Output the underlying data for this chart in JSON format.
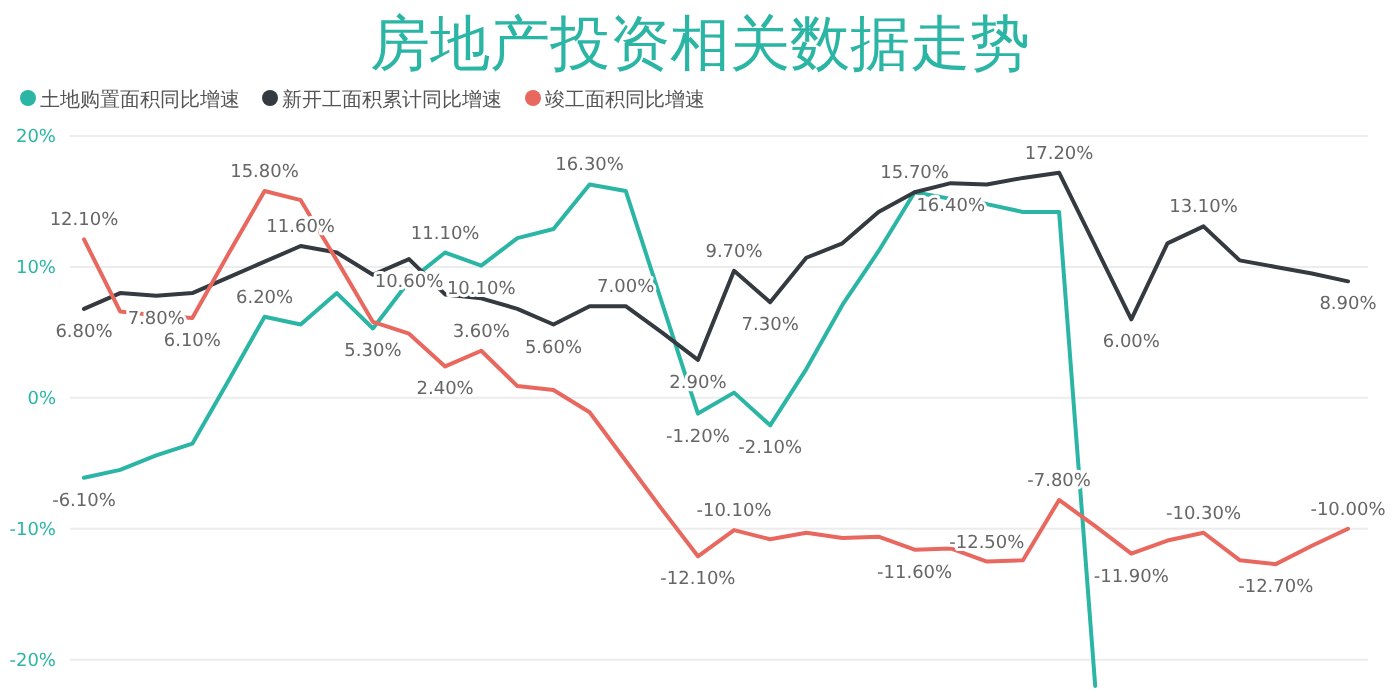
{
  "chart_data": {
    "type": "line",
    "title": "房地产投资相关数据走势",
    "categories": [
      null,
      null,
      null,
      null,
      null,
      null,
      null,
      null,
      null,
      null,
      null,
      null,
      null,
      null,
      null,
      null,
      null,
      null,
      null,
      null,
      null,
      null,
      null,
      null,
      null,
      null,
      null,
      null,
      null,
      null,
      null,
      null,
      null,
      null,
      null,
      null
    ],
    "series": [
      {
        "name": "土地购置面积同比增速",
        "color": "#2bb5a5",
        "values": [
          -6.1,
          -5.5,
          -4.4,
          -3.5,
          1.3,
          6.2,
          5.6,
          8.0,
          5.3,
          8.9,
          11.1,
          10.1,
          12.2,
          12.9,
          16.3,
          15.8,
          7.3,
          -1.2,
          0.4,
          -2.1,
          2.2,
          7.1,
          11.2,
          15.7,
          15.2,
          14.8,
          14.2,
          14.2,
          -22,
          null,
          null,
          null,
          null,
          null,
          null,
          null
        ],
        "value_labels": [
          "-6.10%",
          null,
          null,
          null,
          null,
          "6.20%",
          null,
          null,
          "5.30%",
          null,
          "11.10%",
          "10.10%",
          null,
          null,
          "16.30%",
          null,
          null,
          "-1.20%",
          null,
          "-2.10%",
          null,
          null,
          null,
          "15.70%",
          null,
          null,
          null,
          null,
          null,
          null,
          null,
          null,
          null,
          null,
          null,
          null
        ]
      },
      {
        "name": "新开工面积累计同比增速",
        "color": "#343a3f",
        "values": [
          6.8,
          8.0,
          7.8,
          8.0,
          9.2,
          10.4,
          11.6,
          11.1,
          9.4,
          10.6,
          7.9,
          7.6,
          6.8,
          5.6,
          7.0,
          7.0,
          5.0,
          2.9,
          9.7,
          7.3,
          10.7,
          11.8,
          14.2,
          15.7,
          16.4,
          16.3,
          16.8,
          17.2,
          11.6,
          6.0,
          11.8,
          13.1,
          10.5,
          10.0,
          9.5,
          8.9
        ],
        "value_labels": [
          "6.80%",
          null,
          "7.80%",
          null,
          null,
          null,
          "11.60%",
          null,
          null,
          "10.60%",
          null,
          null,
          null,
          "5.60%",
          null,
          "7.00%",
          null,
          "2.90%",
          "9.70%",
          "7.30%",
          null,
          null,
          null,
          null,
          "16.40%",
          null,
          null,
          "17.20%",
          null,
          "6.00%",
          null,
          "13.10%",
          null,
          null,
          null,
          "8.90%"
        ]
      },
      {
        "name": "竣工面积同比增速",
        "color": "#e8685f",
        "values": [
          12.1,
          6.6,
          6.3,
          6.1,
          11.0,
          15.8,
          15.1,
          10.5,
          5.8,
          4.9,
          2.4,
          3.6,
          0.9,
          0.6,
          -1.1,
          -4.8,
          -8.5,
          -12.1,
          -10.1,
          -10.8,
          -10.3,
          -10.7,
          -10.6,
          -11.6,
          -11.5,
          -12.5,
          -12.4,
          -7.8,
          -9.8,
          -11.9,
          -10.9,
          -10.3,
          -12.4,
          -12.7,
          -11.3,
          -10.0
        ],
        "value_labels": [
          "12.10%",
          null,
          null,
          "6.10%",
          null,
          "15.80%",
          null,
          null,
          null,
          null,
          "2.40%",
          "3.60%",
          null,
          null,
          null,
          null,
          null,
          "-12.10%",
          "-10.10%",
          null,
          null,
          null,
          null,
          "-11.60%",
          null,
          "-12.50%",
          null,
          "-7.80%",
          null,
          "-11.90%",
          null,
          "-10.30%",
          null,
          "-12.70%",
          null,
          "-10.00%"
        ]
      }
    ],
    "ylim": [
      -23,
      20
    ],
    "yticks": [
      {
        "value": 20,
        "label": "20%"
      },
      {
        "value": 10,
        "label": "10%"
      },
      {
        "value": 0,
        "label": "0%"
      },
      {
        "value": -10,
        "label": "-10%"
      },
      {
        "value": -20,
        "label": "-20%"
      }
    ],
    "grid": "y",
    "legend": "top left",
    "marker": "none",
    "line_style": "solid"
  }
}
